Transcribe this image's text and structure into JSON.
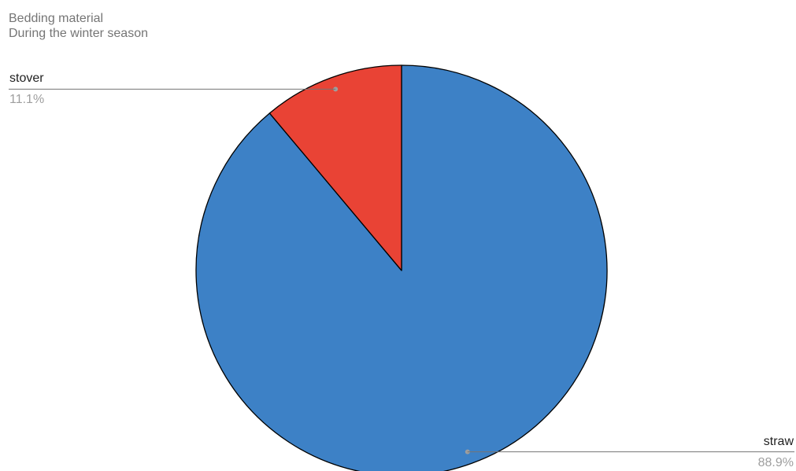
{
  "chart_data": {
    "type": "pie",
    "title": "Bedding material",
    "subtitle": "During the winter season",
    "start_angle_deg": 0,
    "direction": "clockwise",
    "slice_border_color": "#000000",
    "slices": [
      {
        "label": "straw",
        "value": 88.9,
        "percent_label": "88.9%",
        "color": "#3d81c6",
        "label_side": "right"
      },
      {
        "label": "stover",
        "value": 11.1,
        "percent_label": "11.1%",
        "color": "#e94335",
        "label_side": "left"
      }
    ]
  },
  "colors": {
    "leader_line": "#757575",
    "title_text": "#757575",
    "label_text": "#222222",
    "percent_text": "#9e9e9e"
  }
}
